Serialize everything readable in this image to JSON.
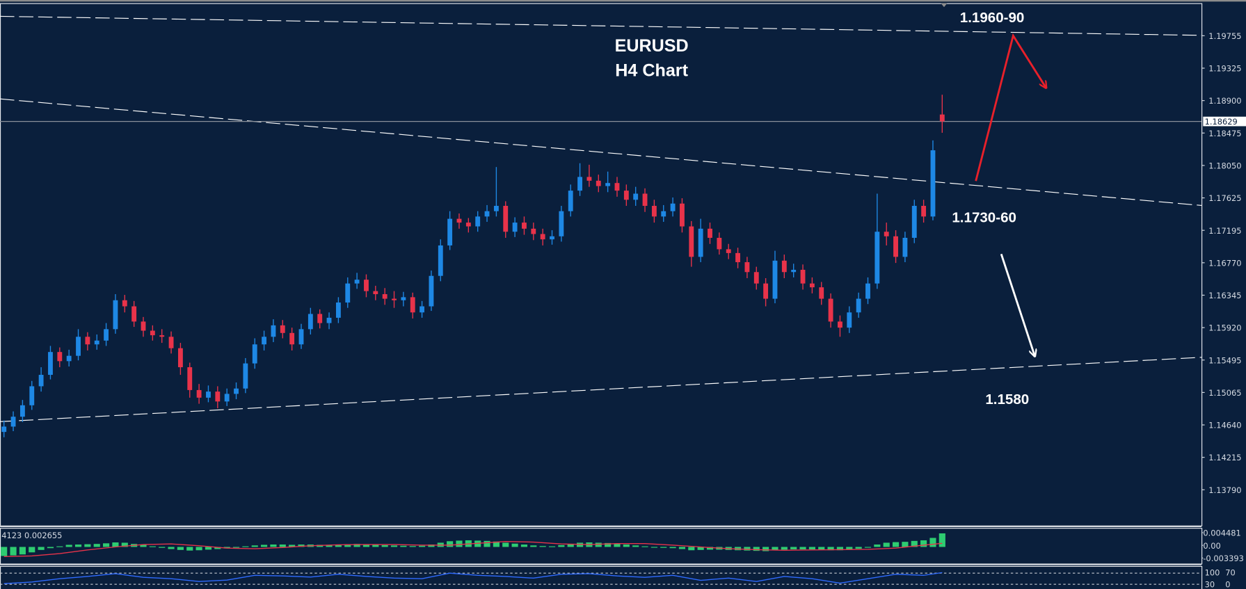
{
  "colors": {
    "background": "#0a1f3c",
    "bull": "#1e88e5",
    "bear": "#e8334a",
    "macd_hist": "#2ecc71",
    "macd_signal": "#e8334a",
    "rsi_line": "#2f6bff",
    "trendline": "#ffffff",
    "price_line": "#8a9099",
    "arrow_up": "#e8202a",
    "arrow_down": "#ffffff"
  },
  "annotations": {
    "title": "EURUSD",
    "subtitle": "H4 Chart",
    "resistance_label": "1.1960-90",
    "pivot_label": "1.1730-60",
    "support_label": "1.1580"
  },
  "chart_data": [
    {
      "type": "candlestick",
      "symbol": "EURUSD",
      "timeframe": "H4",
      "ylim": [
        1.1379,
        1.2
      ],
      "price_ticks": [
        "1.19755",
        "1.19325",
        "1.18900",
        "1.18475",
        "1.18050",
        "1.17625",
        "1.17195",
        "1.16770",
        "1.16345",
        "1.15920",
        "1.15495",
        "1.15065",
        "1.14640",
        "1.14215",
        "1.13790"
      ],
      "current_price": "1.18629",
      "candles_ohlc": [
        [
          1.1455,
          1.147,
          1.1448,
          1.1462
        ],
        [
          1.1462,
          1.1482,
          1.1456,
          1.1475
        ],
        [
          1.1475,
          1.1497,
          1.1468,
          1.149
        ],
        [
          1.149,
          1.1522,
          1.1484,
          1.1515
        ],
        [
          1.1515,
          1.154,
          1.1508,
          1.153
        ],
        [
          1.153,
          1.1568,
          1.1524,
          1.156
        ],
        [
          1.156,
          1.1566,
          1.154,
          1.1548
        ],
        [
          1.1548,
          1.1563,
          1.1541,
          1.1555
        ],
        [
          1.1555,
          1.159,
          1.1549,
          1.158
        ],
        [
          1.158,
          1.1586,
          1.1562,
          1.157
        ],
        [
          1.157,
          1.1583,
          1.1563,
          1.1575
        ],
        [
          1.1575,
          1.1598,
          1.1568,
          1.159
        ],
        [
          1.159,
          1.1636,
          1.1584,
          1.1628
        ],
        [
          1.1628,
          1.1635,
          1.1612,
          1.162
        ],
        [
          1.162,
          1.1627,
          1.1593,
          1.16
        ],
        [
          1.16,
          1.1606,
          1.158,
          1.1588
        ],
        [
          1.1588,
          1.1595,
          1.1575,
          1.1582
        ],
        [
          1.1582,
          1.159,
          1.1572,
          1.158
        ],
        [
          1.158,
          1.1587,
          1.1558,
          1.1565
        ],
        [
          1.1565,
          1.1572,
          1.153,
          1.154
        ],
        [
          1.154,
          1.1546,
          1.15,
          1.151
        ],
        [
          1.151,
          1.1518,
          1.1492,
          1.15
        ],
        [
          1.15,
          1.1516,
          1.1494,
          1.1508
        ],
        [
          1.1508,
          1.1515,
          1.1486,
          1.1495
        ],
        [
          1.1495,
          1.1512,
          1.1489,
          1.1505
        ],
        [
          1.1505,
          1.152,
          1.1498,
          1.1512
        ],
        [
          1.1512,
          1.1552,
          1.1506,
          1.1545
        ],
        [
          1.1545,
          1.1578,
          1.1538,
          1.157
        ],
        [
          1.157,
          1.1588,
          1.1562,
          1.158
        ],
        [
          1.158,
          1.1603,
          1.1573,
          1.1595
        ],
        [
          1.1595,
          1.1602,
          1.1578,
          1.1585
        ],
        [
          1.1585,
          1.1592,
          1.1562,
          1.157
        ],
        [
          1.157,
          1.1597,
          1.1564,
          1.159
        ],
        [
          1.159,
          1.1618,
          1.1583,
          1.161
        ],
        [
          1.161,
          1.1616,
          1.1591,
          1.1598
        ],
        [
          1.1598,
          1.1612,
          1.159,
          1.1605
        ],
        [
          1.1605,
          1.1632,
          1.1598,
          1.1625
        ],
        [
          1.1625,
          1.1658,
          1.1618,
          1.165
        ],
        [
          1.165,
          1.1664,
          1.1643,
          1.1655
        ],
        [
          1.1655,
          1.1662,
          1.1632,
          1.164
        ],
        [
          1.164,
          1.1647,
          1.1628,
          1.1636
        ],
        [
          1.1636,
          1.1644,
          1.1622,
          1.163
        ],
        [
          1.163,
          1.164,
          1.1618,
          1.1628
        ],
        [
          1.1628,
          1.1639,
          1.162,
          1.1632
        ],
        [
          1.1632,
          1.1638,
          1.1604,
          1.1612
        ],
        [
          1.1612,
          1.1627,
          1.1605,
          1.162
        ],
        [
          1.162,
          1.1667,
          1.1614,
          1.166
        ],
        [
          1.166,
          1.1708,
          1.1653,
          1.17
        ],
        [
          1.17,
          1.1745,
          1.1694,
          1.1735
        ],
        [
          1.1735,
          1.1742,
          1.1722,
          1.173
        ],
        [
          1.173,
          1.1736,
          1.1717,
          1.1725
        ],
        [
          1.1725,
          1.1745,
          1.1718,
          1.1738
        ],
        [
          1.1738,
          1.1753,
          1.1731,
          1.1745
        ],
        [
          1.1745,
          1.1803,
          1.1738,
          1.1752
        ],
        [
          1.1752,
          1.1758,
          1.171,
          1.1718
        ],
        [
          1.1718,
          1.1737,
          1.1711,
          1.173
        ],
        [
          1.173,
          1.1738,
          1.1714,
          1.1722
        ],
        [
          1.1722,
          1.173,
          1.1707,
          1.1715
        ],
        [
          1.1715,
          1.1722,
          1.17,
          1.1708
        ],
        [
          1.1708,
          1.172,
          1.1701,
          1.1712
        ],
        [
          1.1712,
          1.1752,
          1.1705,
          1.1745
        ],
        [
          1.1745,
          1.178,
          1.1738,
          1.1772
        ],
        [
          1.1772,
          1.1808,
          1.1765,
          1.179
        ],
        [
          1.179,
          1.1806,
          1.1777,
          1.1785
        ],
        [
          1.1785,
          1.1793,
          1.177,
          1.1778
        ],
        [
          1.1778,
          1.1797,
          1.177,
          1.1782
        ],
        [
          1.1782,
          1.179,
          1.1764,
          1.1772
        ],
        [
          1.1772,
          1.178,
          1.1752,
          1.176
        ],
        [
          1.176,
          1.1777,
          1.1752,
          1.1768
        ],
        [
          1.1768,
          1.1775,
          1.1744,
          1.1752
        ],
        [
          1.1752,
          1.176,
          1.173,
          1.1738
        ],
        [
          1.1738,
          1.1753,
          1.1731,
          1.1745
        ],
        [
          1.1745,
          1.1763,
          1.1738,
          1.1755
        ],
        [
          1.1755,
          1.1762,
          1.1717,
          1.1725
        ],
        [
          1.1725,
          1.1732,
          1.1672,
          1.1685
        ],
        [
          1.1685,
          1.1735,
          1.1678,
          1.1722
        ],
        [
          1.1722,
          1.173,
          1.1702,
          1.171
        ],
        [
          1.171,
          1.1717,
          1.1688,
          1.1695
        ],
        [
          1.1695,
          1.1702,
          1.1682,
          1.169
        ],
        [
          1.169,
          1.1697,
          1.167,
          1.1678
        ],
        [
          1.1678,
          1.1685,
          1.1657,
          1.1665
        ],
        [
          1.1665,
          1.1672,
          1.1642,
          1.165
        ],
        [
          1.165,
          1.1657,
          1.162,
          1.163
        ],
        [
          1.163,
          1.1693,
          1.1624,
          1.168
        ],
        [
          1.168,
          1.1688,
          1.1657,
          1.1665
        ],
        [
          1.1665,
          1.1676,
          1.1658,
          1.1668
        ],
        [
          1.1668,
          1.1675,
          1.1642,
          1.165
        ],
        [
          1.165,
          1.1658,
          1.1637,
          1.1645
        ],
        [
          1.1645,
          1.1652,
          1.1622,
          1.163
        ],
        [
          1.163,
          1.1637,
          1.1592,
          1.16
        ],
        [
          1.16,
          1.1608,
          1.158,
          1.1592
        ],
        [
          1.1592,
          1.162,
          1.1585,
          1.1612
        ],
        [
          1.1612,
          1.1638,
          1.1605,
          1.163
        ],
        [
          1.163,
          1.1658,
          1.1623,
          1.165
        ],
        [
          1.165,
          1.1768,
          1.1643,
          1.1718
        ],
        [
          1.1718,
          1.173,
          1.17,
          1.1712
        ],
        [
          1.1712,
          1.172,
          1.1677,
          1.1685
        ],
        [
          1.1685,
          1.1718,
          1.1678,
          1.171
        ],
        [
          1.171,
          1.176,
          1.1703,
          1.1752
        ],
        [
          1.1752,
          1.176,
          1.173,
          1.1738
        ],
        [
          1.1738,
          1.1838,
          1.1733,
          1.1825
        ],
        [
          1.1872,
          1.1898,
          1.1848,
          1.1863
        ]
      ],
      "trendlines": [
        {
          "name": "resistance",
          "from": 1.2001,
          "to": 1.1976
        },
        {
          "name": "upper-channel",
          "from": 1.18925,
          "to": 1.17525
        },
        {
          "name": "lower-channel",
          "from": 1.14685,
          "to": 1.1553
        }
      ]
    },
    {
      "type": "bar",
      "indicator": "MACD",
      "header_text": "4123 0.002655",
      "ylim_labels": [
        "0.004481",
        "0.00",
        "-0.003393"
      ],
      "ylim": [
        -0.003393,
        0.004481
      ],
      "histogram": [
        -0.003,
        -0.0028,
        -0.0025,
        -0.0018,
        -0.001,
        -0.0004,
        0.0002,
        0.0007,
        0.0008,
        0.0009,
        0.001,
        0.0012,
        0.0015,
        0.0014,
        0.001,
        0.0008,
        0.0002,
        -0.0003,
        -0.0007,
        -0.001,
        -0.0012,
        -0.0011,
        -0.0009,
        -0.0007,
        -0.0005,
        -0.0002,
        0.0002,
        0.0005,
        0.0007,
        0.0008,
        0.0008,
        0.0007,
        0.0008,
        0.0008,
        0.0007,
        0.0007,
        0.0008,
        0.0009,
        0.001,
        0.0009,
        0.0007,
        0.0006,
        0.0005,
        0.0004,
        0.0003,
        0.0004,
        0.0008,
        0.0014,
        0.0019,
        0.0021,
        0.0022,
        0.0021,
        0.002,
        0.0018,
        0.0014,
        0.0011,
        0.0008,
        0.0005,
        0.0003,
        0.0002,
        0.0006,
        0.001,
        0.0014,
        0.0015,
        0.0014,
        0.0013,
        0.0011,
        0.0008,
        0.0005,
        0.0002,
        -0.0001,
        -0.0003,
        -0.0004,
        -0.0007,
        -0.0011,
        -0.001,
        -0.0009,
        -0.0009,
        -0.001,
        -0.0011,
        -0.0012,
        -0.0013,
        -0.0014,
        -0.001,
        -0.0009,
        -0.0008,
        -0.0008,
        -0.0008,
        -0.0009,
        -0.0011,
        -0.0011,
        -0.0009,
        -0.0006,
        -0.0002,
        0.0008,
        0.0014,
        0.0016,
        0.0017,
        0.002,
        0.0022,
        0.003,
        0.0045
      ],
      "signal": [
        [
          0,
          -0.0032
        ],
        [
          3,
          -0.003
        ],
        [
          6,
          -0.0022
        ],
        [
          9,
          -0.001
        ],
        [
          12,
          0.0
        ],
        [
          15,
          0.0008
        ],
        [
          18,
          0.001
        ],
        [
          21,
          0.0004
        ],
        [
          24,
          -0.0004
        ],
        [
          27,
          -0.0006
        ],
        [
          30,
          -0.0002
        ],
        [
          33,
          0.0004
        ],
        [
          36,
          0.0007
        ],
        [
          39,
          0.0008
        ],
        [
          42,
          0.0008
        ],
        [
          45,
          0.0006
        ],
        [
          48,
          0.0006
        ],
        [
          51,
          0.0012
        ],
        [
          54,
          0.0018
        ],
        [
          57,
          0.0016
        ],
        [
          60,
          0.001
        ],
        [
          63,
          0.0008
        ],
        [
          66,
          0.0011
        ],
        [
          69,
          0.0011
        ],
        [
          72,
          0.0006
        ],
        [
          75,
          0.0
        ],
        [
          78,
          -0.0006
        ],
        [
          81,
          -0.0009
        ],
        [
          84,
          -0.0011
        ],
        [
          87,
          -0.001
        ],
        [
          90,
          -0.0009
        ],
        [
          93,
          -0.0008
        ],
        [
          96,
          -0.0004
        ],
        [
          99,
          0.0006
        ],
        [
          101,
          0.0012
        ]
      ]
    },
    {
      "type": "line",
      "indicator": "RSI",
      "ylim_labels": [
        "100",
        "70",
        "30",
        "0"
      ],
      "levels": [
        70,
        30
      ],
      "values": [
        [
          0,
          32
        ],
        [
          3,
          38
        ],
        [
          6,
          50
        ],
        [
          9,
          58
        ],
        [
          12,
          68
        ],
        [
          15,
          55
        ],
        [
          18,
          50
        ],
        [
          21,
          40
        ],
        [
          24,
          45
        ],
        [
          27,
          62
        ],
        [
          30,
          60
        ],
        [
          33,
          56
        ],
        [
          36,
          66
        ],
        [
          39,
          58
        ],
        [
          42,
          52
        ],
        [
          45,
          50
        ],
        [
          48,
          70
        ],
        [
          51,
          62
        ],
        [
          54,
          58
        ],
        [
          57,
          52
        ],
        [
          60,
          66
        ],
        [
          63,
          68
        ],
        [
          66,
          60
        ],
        [
          69,
          55
        ],
        [
          72,
          62
        ],
        [
          75,
          44
        ],
        [
          78,
          52
        ],
        [
          81,
          40
        ],
        [
          84,
          58
        ],
        [
          87,
          50
        ],
        [
          90,
          34
        ],
        [
          93,
          50
        ],
        [
          96,
          66
        ],
        [
          99,
          62
        ],
        [
          101,
          72
        ]
      ]
    }
  ]
}
